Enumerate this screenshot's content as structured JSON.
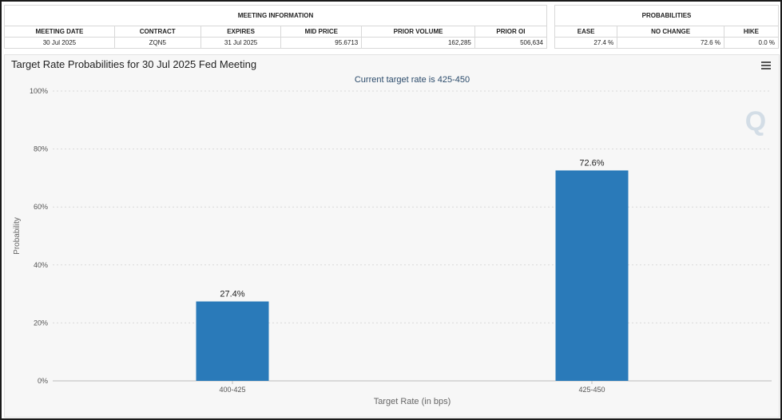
{
  "meeting_info": {
    "group_header": "MEETING INFORMATION",
    "headers": [
      "MEETING DATE",
      "CONTRACT",
      "EXPIRES",
      "MID PRICE",
      "PRIOR VOLUME",
      "PRIOR OI"
    ],
    "values": [
      "30 Jul 2025",
      "ZQN5",
      "31 Jul 2025",
      "95.6713",
      "162,285",
      "506,634"
    ]
  },
  "probabilities": {
    "group_header": "PROBABILITIES",
    "headers": [
      "EASE",
      "NO CHANGE",
      "HIKE"
    ],
    "values": [
      "27.4 %",
      "72.6 %",
      "0.0 %"
    ]
  },
  "chart_data": {
    "type": "bar",
    "title": "Target Rate Probabilities for 30 Jul 2025 Fed Meeting",
    "subtitle": "Current target rate is 425-450",
    "categories": [
      "400-425",
      "425-450"
    ],
    "values": [
      27.4,
      72.6
    ],
    "data_labels": [
      "27.4%",
      "72.6%"
    ],
    "xlabel": "Target Rate (in bps)",
    "ylabel": "Probability",
    "ylim": [
      0,
      100
    ],
    "yticks": [
      0,
      20,
      40,
      60,
      80,
      100
    ],
    "ytick_labels": [
      "0%",
      "20%",
      "40%",
      "60%",
      "80%",
      "100%"
    ],
    "grid": true,
    "bar_color": "#2a7ab9",
    "watermark": "Q"
  }
}
